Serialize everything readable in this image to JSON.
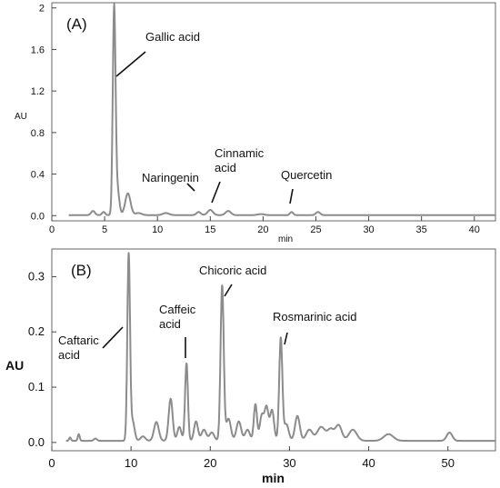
{
  "chart_data": [
    {
      "type": "line",
      "panel_label": "(A)",
      "xlabel": "min",
      "ylabel": "AU",
      "xlim": [
        0,
        42
      ],
      "ylim": [
        -0.05,
        2.05
      ],
      "x_ticks": [
        0,
        5,
        10,
        15,
        20,
        25,
        30,
        35,
        40
      ],
      "y_ticks": [
        0.0,
        0.4,
        0.8,
        1.2,
        1.6,
        2.0
      ],
      "y_tick_labels": [
        "0.0",
        "0.4",
        "0.8",
        "1.2",
        "1.6",
        "2"
      ],
      "baseline": 0.005,
      "peaks": [
        {
          "t": 3.9,
          "h": 0.04,
          "w": 0.18
        },
        {
          "t": 4.9,
          "h": 0.03,
          "w": 0.15
        },
        {
          "t": 5.9,
          "h": 1.97,
          "w": 0.13
        },
        {
          "t": 6.2,
          "h": 0.25,
          "w": 0.18
        },
        {
          "t": 7.2,
          "h": 0.21,
          "w": 0.25
        },
        {
          "t": 8.2,
          "h": 0.02,
          "w": 0.3
        },
        {
          "t": 10.8,
          "h": 0.02,
          "w": 0.3
        },
        {
          "t": 13.9,
          "h": 0.03,
          "w": 0.2
        },
        {
          "t": 15.0,
          "h": 0.05,
          "w": 0.25
        },
        {
          "t": 16.7,
          "h": 0.04,
          "w": 0.25
        },
        {
          "t": 19.8,
          "h": 0.01,
          "w": 0.3
        },
        {
          "t": 22.7,
          "h": 0.03,
          "w": 0.15
        },
        {
          "t": 25.2,
          "h": 0.03,
          "w": 0.2
        }
      ],
      "annotations": [
        {
          "lines": [
            "Gallic acid"
          ],
          "tip_x": 6.2,
          "tip_y": 1.3,
          "text_x": 13.0,
          "text_y": 1.7
        },
        {
          "lines": [
            "Naringenin"
          ],
          "tip_x": 13.9,
          "tip_y": 0.07,
          "text_x": 10.0,
          "text_y": 0.3
        },
        {
          "lines": [
            "Cinnamic",
            "acid"
          ],
          "tip_x": 15.2,
          "tip_y": 0.07,
          "text_x": 17.3,
          "text_y": 0.56
        },
        {
          "lines": [
            "Quercetin"
          ],
          "tip_x": 22.6,
          "tip_y": 0.06,
          "text_x": 21.7,
          "text_y": 0.32
        }
      ]
    },
    {
      "type": "line",
      "panel_label": "(B)",
      "xlabel": "min",
      "ylabel": "AU",
      "xlim": [
        0,
        56
      ],
      "ylim": [
        -0.015,
        0.35
      ],
      "x_ticks": [
        0,
        10,
        20,
        30,
        40,
        50
      ],
      "y_ticks": [
        0.0,
        0.1,
        0.2,
        0.3
      ],
      "y_tick_labels": [
        "0.0",
        "0.1",
        "0.2",
        "0.3"
      ],
      "baseline": 0.003,
      "peaks": [
        {
          "t": 2.3,
          "h": 0.006,
          "w": 0.12
        },
        {
          "t": 3.4,
          "h": 0.012,
          "w": 0.12
        },
        {
          "t": 5.5,
          "h": 0.004,
          "w": 0.2
        },
        {
          "t": 9.7,
          "h": 0.335,
          "w": 0.17
        },
        {
          "t": 10.2,
          "h": 0.035,
          "w": 0.25
        },
        {
          "t": 11.5,
          "h": 0.008,
          "w": 0.3
        },
        {
          "t": 13.2,
          "h": 0.034,
          "w": 0.3
        },
        {
          "t": 15.0,
          "h": 0.076,
          "w": 0.25
        },
        {
          "t": 16.1,
          "h": 0.025,
          "w": 0.25
        },
        {
          "t": 17.0,
          "h": 0.14,
          "w": 0.18
        },
        {
          "t": 18.2,
          "h": 0.035,
          "w": 0.25
        },
        {
          "t": 19.2,
          "h": 0.02,
          "w": 0.3
        },
        {
          "t": 20.2,
          "h": 0.015,
          "w": 0.3
        },
        {
          "t": 21.5,
          "h": 0.28,
          "w": 0.2
        },
        {
          "t": 22.3,
          "h": 0.04,
          "w": 0.3
        },
        {
          "t": 23.6,
          "h": 0.035,
          "w": 0.3
        },
        {
          "t": 24.7,
          "h": 0.02,
          "w": 0.3
        },
        {
          "t": 25.7,
          "h": 0.066,
          "w": 0.2
        },
        {
          "t": 26.5,
          "h": 0.045,
          "w": 0.25
        },
        {
          "t": 27.1,
          "h": 0.06,
          "w": 0.25
        },
        {
          "t": 27.8,
          "h": 0.055,
          "w": 0.25
        },
        {
          "t": 28.9,
          "h": 0.185,
          "w": 0.2
        },
        {
          "t": 29.6,
          "h": 0.03,
          "w": 0.3
        },
        {
          "t": 31.0,
          "h": 0.045,
          "w": 0.3
        },
        {
          "t": 32.5,
          "h": 0.02,
          "w": 0.4
        },
        {
          "t": 34.0,
          "h": 0.025,
          "w": 0.5
        },
        {
          "t": 35.2,
          "h": 0.02,
          "w": 0.4
        },
        {
          "t": 36.2,
          "h": 0.028,
          "w": 0.4
        },
        {
          "t": 38.0,
          "h": 0.02,
          "w": 0.5
        },
        {
          "t": 42.5,
          "h": 0.012,
          "w": 0.6
        },
        {
          "t": 50.2,
          "h": 0.015,
          "w": 0.35
        }
      ],
      "annotations": [
        {
          "lines": [
            "Caftaric",
            "acid"
          ],
          "tip_x": 9.2,
          "tip_y": 0.21,
          "text_x": 0.6,
          "text_y": 0.18
        },
        {
          "lines": [
            "Caffeic",
            "acid"
          ],
          "tip_x": 17.0,
          "tip_y": 0.155,
          "text_x": 14.2,
          "text_y": 0.245
        },
        {
          "lines": [
            "Chicoric acid"
          ],
          "tip_x": 21.8,
          "tip_y": 0.275,
          "text_x": 21.3,
          "text_y": 0.325
        },
        {
          "lines": [
            "Rosmarinic acid"
          ],
          "tip_x": 29.0,
          "tip_y": 0.18,
          "text_x": 29.8,
          "text_y": 0.232
        }
      ]
    }
  ]
}
